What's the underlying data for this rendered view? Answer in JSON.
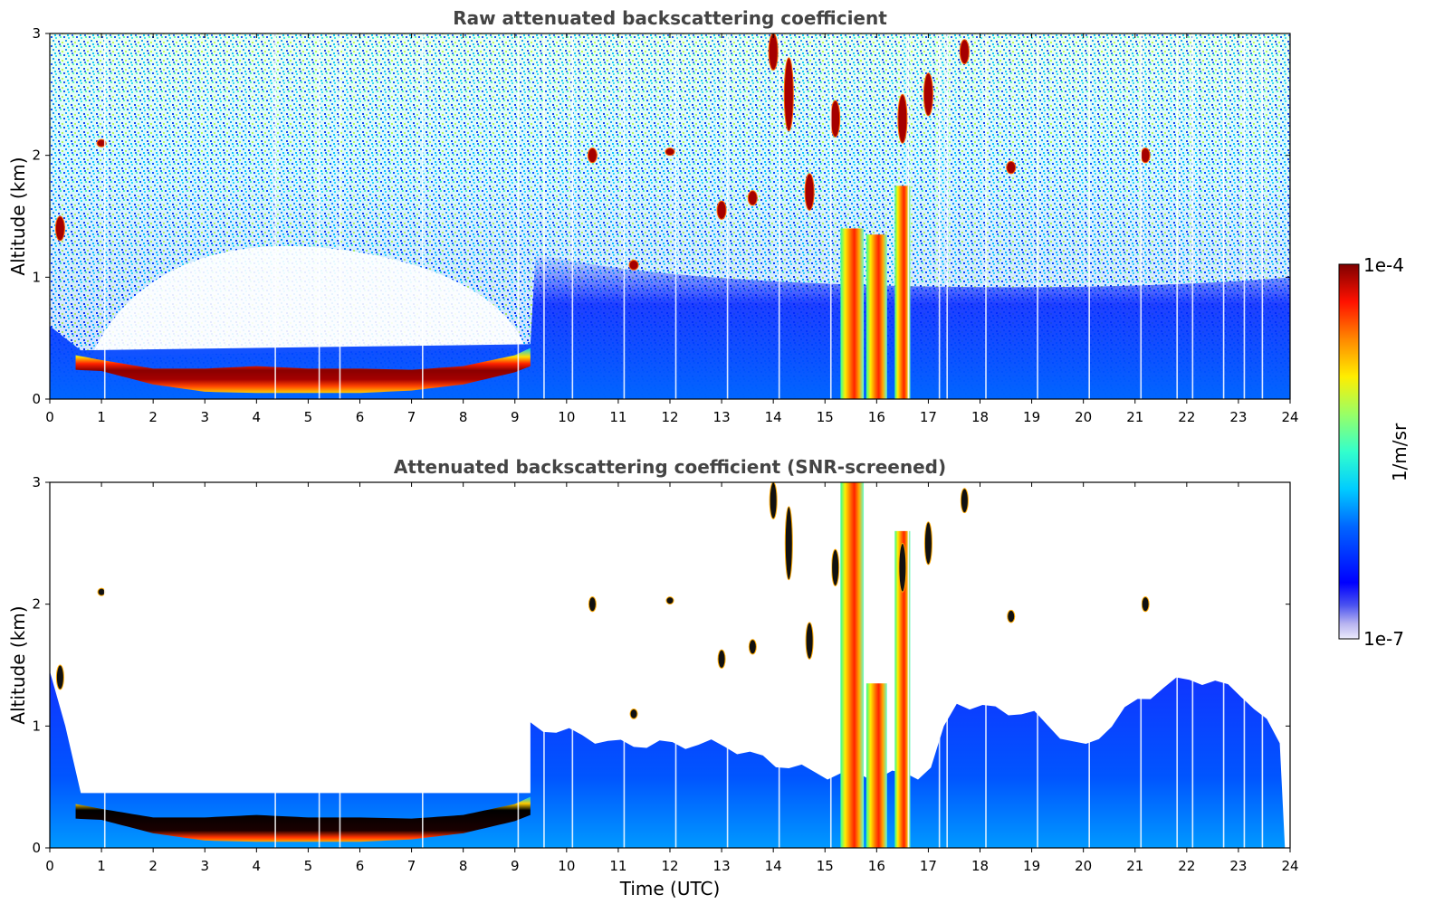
{
  "chart_data": [
    {
      "type": "heatmap",
      "title": "Raw attenuated backscattering coefficient",
      "xlabel": "",
      "ylabel": "Altitude (km)",
      "xlim": [
        0,
        24
      ],
      "ylim": [
        0,
        3
      ],
      "x_ticks": [
        "0",
        "1",
        "2",
        "3",
        "4",
        "5",
        "6",
        "7",
        "8",
        "9",
        "10",
        "11",
        "12",
        "13",
        "14",
        "15",
        "16",
        "17",
        "18",
        "19",
        "20",
        "21",
        "22",
        "23",
        "24"
      ],
      "y_ticks": [
        "0",
        "1",
        "2",
        "3"
      ],
      "features": {
        "boundary_layer": {
          "times": [
            0.5,
            1,
            2,
            3,
            4,
            5,
            6,
            7,
            8,
            9,
            9.3
          ],
          "bottom_km": [
            0.24,
            0.23,
            0.12,
            0.06,
            0.05,
            0.05,
            0.05,
            0.07,
            0.12,
            0.22,
            0.27
          ],
          "top_km": [
            0.36,
            0.32,
            0.25,
            0.25,
            0.27,
            0.25,
            0.25,
            0.24,
            0.27,
            0.36,
            0.42
          ]
        },
        "clouds": [
          {
            "t": 0.2,
            "z": 1.4,
            "dz": 0.2
          },
          {
            "t": 1.0,
            "z": 2.1,
            "dz": 0.06
          },
          {
            "t": 10.5,
            "z": 2.0,
            "dz": 0.12
          },
          {
            "t": 11.3,
            "z": 1.1,
            "dz": 0.08
          },
          {
            "t": 12.0,
            "z": 2.03,
            "dz": 0.05
          },
          {
            "t": 13.0,
            "z": 1.55,
            "dz": 0.15
          },
          {
            "t": 13.6,
            "z": 1.65,
            "dz": 0.12
          },
          {
            "t": 14.0,
            "z": 2.85,
            "dz": 0.3
          },
          {
            "t": 14.3,
            "z": 2.5,
            "dz": 0.6
          },
          {
            "t": 14.7,
            "z": 1.7,
            "dz": 0.3
          },
          {
            "t": 15.2,
            "z": 2.3,
            "dz": 0.3
          },
          {
            "t": 16.5,
            "z": 2.3,
            "dz": 0.4
          },
          {
            "t": 17.0,
            "z": 2.5,
            "dz": 0.35
          },
          {
            "t": 17.7,
            "z": 2.85,
            "dz": 0.2
          },
          {
            "t": 18.6,
            "z": 1.9,
            "dz": 0.1
          },
          {
            "t": 21.2,
            "z": 2.0,
            "dz": 0.12
          }
        ],
        "precipitation_columns": [
          {
            "t0": 15.3,
            "t1": 15.75
          },
          {
            "t0": 15.8,
            "t1": 16.2
          },
          {
            "t0": 16.35,
            "t1": 16.65
          }
        ]
      }
    },
    {
      "type": "heatmap",
      "title": "Attenuated backscattering coefficient (SNR-screened)",
      "xlabel": "Time (UTC)",
      "ylabel": "Altitude (km)",
      "xlim": [
        0,
        24
      ],
      "ylim": [
        0,
        3
      ],
      "x_ticks": [
        "0",
        "1",
        "2",
        "3",
        "4",
        "5",
        "6",
        "7",
        "8",
        "9",
        "10",
        "11",
        "12",
        "13",
        "14",
        "15",
        "16",
        "17",
        "18",
        "19",
        "20",
        "21",
        "22",
        "23",
        "24"
      ],
      "y_ticks": [
        "0",
        "1",
        "2",
        "3"
      ],
      "features": {
        "aerosol_layer_top_km": {
          "times": [
            9.3,
            10,
            11,
            12,
            13,
            14,
            15,
            15.3,
            17,
            17.5,
            18,
            19,
            20,
            21,
            22,
            23,
            23.5,
            23.9
          ],
          "top": [
            1.0,
            0.95,
            0.85,
            0.85,
            0.85,
            0.7,
            0.6,
            0.6,
            0.6,
            1.2,
            1.15,
            1.1,
            0.8,
            1.2,
            1.4,
            1.3,
            1.05,
            0.8
          ]
        }
      }
    }
  ],
  "colorbar": {
    "label": "1/m/sr",
    "min_label": "1e-7",
    "max_label": "1e-4",
    "scale": "log",
    "colormap": "jet"
  }
}
